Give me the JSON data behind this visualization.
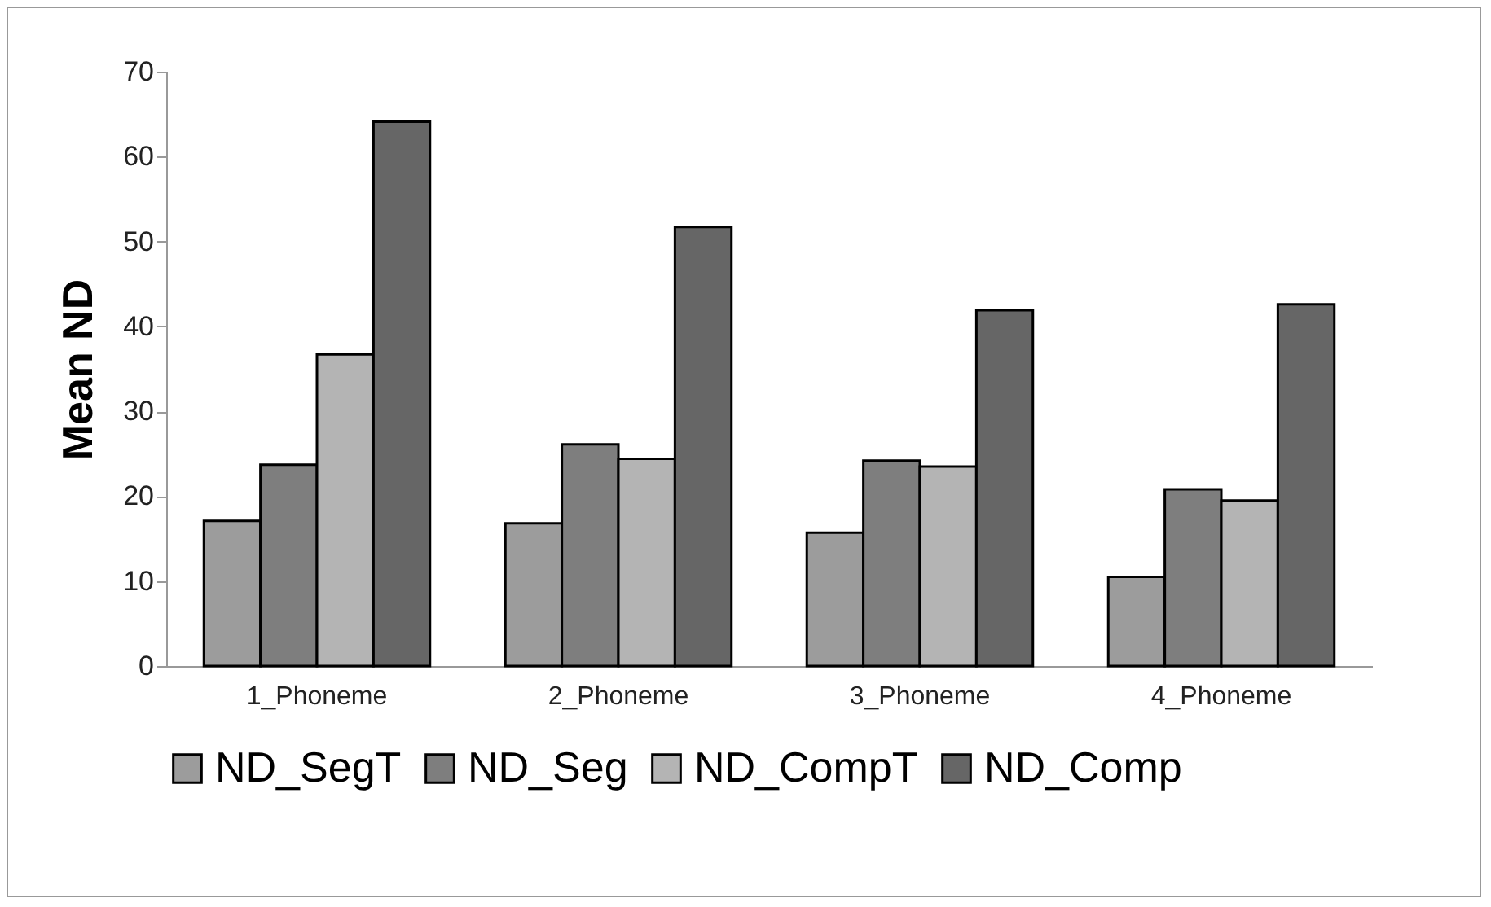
{
  "chart_data": {
    "type": "bar",
    "ylabel": "Mean ND",
    "categories": [
      "1_Phoneme",
      "2_Phoneme",
      "3_Phoneme",
      "4_Phoneme"
    ],
    "series": [
      {
        "name": "ND_SegT",
        "color": "#9c9c9c",
        "values": [
          17.1,
          16.8,
          15.7,
          10.5
        ]
      },
      {
        "name": "ND_Seg",
        "color": "#7e7e7e",
        "values": [
          23.7,
          26.1,
          24.2,
          20.8
        ]
      },
      {
        "name": "ND_CompT",
        "color": "#b4b4b4",
        "values": [
          36.7,
          24.4,
          23.5,
          19.5
        ]
      },
      {
        "name": "ND_Comp",
        "color": "#666666",
        "values": [
          64.1,
          51.7,
          41.9,
          42.6
        ]
      }
    ],
    "ylim": [
      0,
      70
    ],
    "yticks": [
      0,
      10,
      20,
      30,
      40,
      50,
      60,
      70
    ],
    "grid": false,
    "legend": "bottom"
  }
}
